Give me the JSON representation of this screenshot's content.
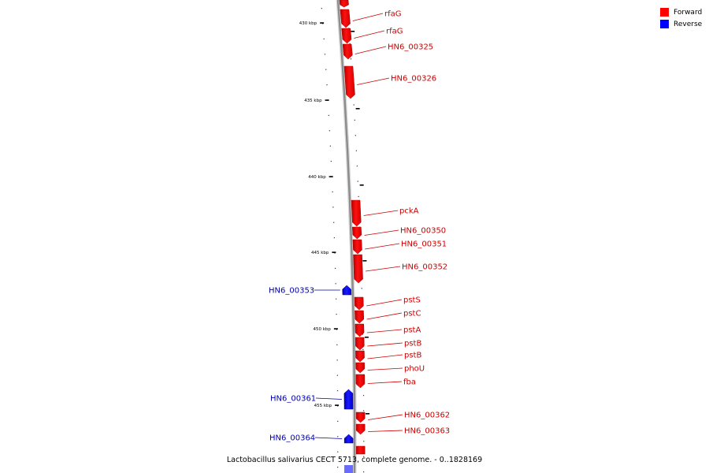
{
  "caption": "Lactobacillus salivarius CECT 5713, complete genome. - 0..1828169",
  "colors": {
    "forward": "#ff0000",
    "reverse": "#0000ff",
    "label_forward": "#cc0000",
    "label_reverse": "#0000aa"
  },
  "legend": [
    {
      "label": "Forward",
      "color": "#ff0000"
    },
    {
      "label": "Reverse",
      "color": "#0000ff"
    }
  ],
  "scale_labels": [
    "430 kbp",
    "435 kbp",
    "440 kbp",
    "445 kbp",
    "450 kbp",
    "455 kbp"
  ],
  "genes": [
    {
      "label": "rfaG",
      "strand": "forward"
    },
    {
      "label": "rfaG",
      "strand": "forward"
    },
    {
      "label": "HN6_00325",
      "strand": "forward"
    },
    {
      "label": "HN6_00326",
      "strand": "forward"
    },
    {
      "label": "pckA",
      "strand": "forward"
    },
    {
      "label": "HN6_00350",
      "strand": "forward"
    },
    {
      "label": "HN6_00351",
      "strand": "forward"
    },
    {
      "label": "HN6_00352",
      "strand": "forward"
    },
    {
      "label": "HN6_00353",
      "strand": "reverse"
    },
    {
      "label": "pstS",
      "strand": "forward"
    },
    {
      "label": "pstC",
      "strand": "forward"
    },
    {
      "label": "pstA",
      "strand": "forward"
    },
    {
      "label": "pstB",
      "strand": "forward"
    },
    {
      "label": "pstB",
      "strand": "forward"
    },
    {
      "label": "phoU",
      "strand": "forward"
    },
    {
      "label": "fba",
      "strand": "forward"
    },
    {
      "label": "HN6_00361",
      "strand": "reverse"
    },
    {
      "label": "HN6_00362",
      "strand": "forward"
    },
    {
      "label": "HN6_00363",
      "strand": "forward"
    },
    {
      "label": "HN6_00364",
      "strand": "reverse"
    }
  ]
}
